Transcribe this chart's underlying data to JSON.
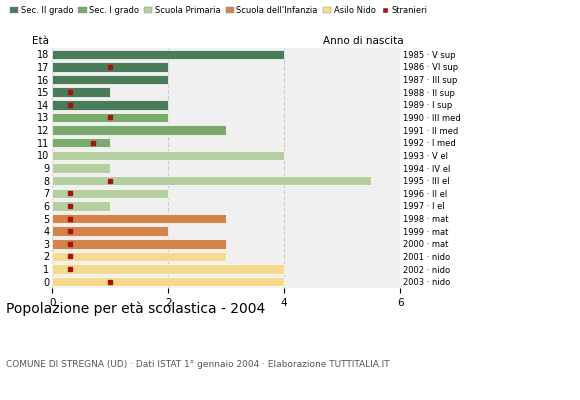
{
  "title": "Popolazione per età scolastica - 2004",
  "subtitle": "COMUNE DI STREGNA (UD) · Dati ISTAT 1° gennaio 2004 · Elaborazione TUTTITALIA.IT",
  "label_eta": "Età",
  "label_anno": "Anno di nascita",
  "ages": [
    18,
    17,
    16,
    15,
    14,
    13,
    12,
    11,
    10,
    9,
    8,
    7,
    6,
    5,
    4,
    3,
    2,
    1,
    0
  ],
  "right_labels": [
    "1985 · V sup",
    "1986 · VI sup",
    "1987 · III sup",
    "1988 · II sup",
    "1989 · I sup",
    "1990 · III med",
    "1991 · II med",
    "1992 · I med",
    "1993 · V el",
    "1994 · IV el",
    "1995 · III el",
    "1996 · II el",
    "1997 · I el",
    "1998 · mat",
    "1999 · mat",
    "2000 · mat",
    "2001 · nido",
    "2002 · nido",
    "2003 · nido"
  ],
  "bar_values": [
    4,
    2,
    2,
    1,
    2,
    2,
    3,
    1,
    4,
    1,
    5.5,
    2,
    1,
    3,
    2,
    3,
    3,
    4,
    4
  ],
  "bar_colors": [
    "#4a7c59",
    "#4a7c59",
    "#4a7c59",
    "#4a7c59",
    "#4a7c59",
    "#7aaa6e",
    "#7aaa6e",
    "#7aaa6e",
    "#b5cfa0",
    "#b5cfa0",
    "#b5cfa0",
    "#b5cfa0",
    "#b5cfa0",
    "#d4834a",
    "#d4834a",
    "#d4834a",
    "#f5d98c",
    "#f5d98c",
    "#f5d98c"
  ],
  "stranieri_ages": [
    17,
    15,
    14,
    13,
    11,
    8,
    7,
    6,
    5,
    4,
    3,
    2,
    1,
    0
  ],
  "stranieri_xvals": [
    1.0,
    0.3,
    0.3,
    1.0,
    0.7,
    1.0,
    0.3,
    0.3,
    0.3,
    0.3,
    0.3,
    0.3,
    0.3,
    1.0
  ],
  "stranieri_color": "#aa1111",
  "legend_labels": [
    "Sec. II grado",
    "Sec. I grado",
    "Scuola Primaria",
    "Scuola dell'Infanzia",
    "Asilo Nido",
    "Stranieri"
  ],
  "legend_colors": [
    "#4a7c59",
    "#7aaa6e",
    "#b5cfa0",
    "#d4834a",
    "#f5d98c",
    "#aa1111"
  ],
  "xlim": [
    0,
    6
  ],
  "xticks": [
    0,
    2,
    4,
    6
  ],
  "grid_color": "#cccccc",
  "bar_edge_color": "white",
  "bg_color": "#ffffff",
  "plot_bg_color": "#f0f0f0"
}
